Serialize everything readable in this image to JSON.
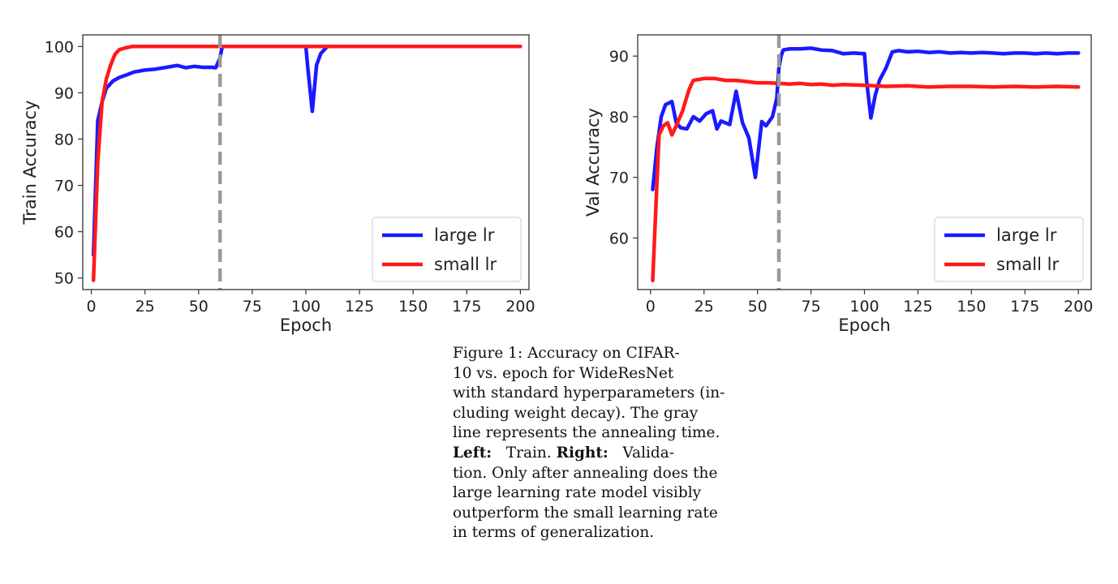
{
  "chart_data": [
    {
      "type": "line",
      "title": "",
      "xlabel": "Epoch",
      "ylabel": "Train Accuracy",
      "xlim": [
        -4,
        204
      ],
      "ylim": [
        47.5,
        102.5
      ],
      "xticks": [
        0,
        25,
        50,
        75,
        100,
        125,
        150,
        175,
        200
      ],
      "yticks": [
        50,
        60,
        70,
        80,
        90,
        100
      ],
      "grid": false,
      "legend": "bottom-right",
      "vline": {
        "x": 60,
        "color": "#999999",
        "style": "dashed"
      },
      "series": [
        {
          "name": "large lr",
          "color": "#1a1aff",
          "points": [
            [
              1,
              55
            ],
            [
              3,
              84
            ],
            [
              5,
              88
            ],
            [
              7,
              91
            ],
            [
              10,
              92.5
            ],
            [
              13,
              93.3
            ],
            [
              16,
              93.8
            ],
            [
              20,
              94.5
            ],
            [
              25,
              94.9
            ],
            [
              30,
              95.1
            ],
            [
              35,
              95.5
            ],
            [
              40,
              95.9
            ],
            [
              44,
              95.4
            ],
            [
              48,
              95.7
            ],
            [
              52,
              95.5
            ],
            [
              56,
              95.5
            ],
            [
              58,
              95.4
            ],
            [
              60,
              97.5
            ],
            [
              61,
              100
            ],
            [
              100,
              100
            ],
            [
              101,
              95
            ],
            [
              103,
              86
            ],
            [
              105,
              96
            ],
            [
              107,
              98.5
            ],
            [
              110,
              100
            ],
            [
              200,
              100
            ]
          ]
        },
        {
          "name": "small lr",
          "color": "#ff1a1a",
          "points": [
            [
              1,
              49.5
            ],
            [
              3,
              75
            ],
            [
              5,
              88
            ],
            [
              7,
              93
            ],
            [
              9,
              96
            ],
            [
              11,
              98.3
            ],
            [
              13,
              99.3
            ],
            [
              16,
              99.7
            ],
            [
              19,
              100
            ],
            [
              200,
              100
            ]
          ]
        }
      ]
    },
    {
      "type": "line",
      "title": "",
      "xlabel": "Epoch",
      "ylabel": "Val Accuracy",
      "xlim": [
        -6,
        206
      ],
      "ylim": [
        51.5,
        93.5
      ],
      "xticks": [
        0,
        25,
        50,
        75,
        100,
        125,
        150,
        175,
        200
      ],
      "yticks": [
        60,
        70,
        80,
        90
      ],
      "grid": false,
      "legend": "bottom-right",
      "vline": {
        "x": 60,
        "color": "#999999",
        "style": "dashed"
      },
      "series": [
        {
          "name": "large lr",
          "color": "#1a1aff",
          "points": [
            [
              1,
              68
            ],
            [
              3,
              75
            ],
            [
              5,
              80
            ],
            [
              7,
              82
            ],
            [
              10,
              82.5
            ],
            [
              12,
              79
            ],
            [
              14,
              78.2
            ],
            [
              17,
              78
            ],
            [
              20,
              80
            ],
            [
              23,
              79.3
            ],
            [
              26,
              80.5
            ],
            [
              29,
              81
            ],
            [
              31,
              78
            ],
            [
              33,
              79.3
            ],
            [
              35,
              79
            ],
            [
              37,
              78.7
            ],
            [
              40,
              84.2
            ],
            [
              43,
              79
            ],
            [
              46,
              76.5
            ],
            [
              49,
              70
            ],
            [
              52,
              79.2
            ],
            [
              54,
              78.5
            ],
            [
              57,
              80
            ],
            [
              59,
              83
            ],
            [
              60,
              88
            ],
            [
              61,
              90
            ],
            [
              62,
              91
            ],
            [
              65,
              91.2
            ],
            [
              70,
              91.2
            ],
            [
              75,
              91.3
            ],
            [
              80,
              91
            ],
            [
              85,
              90.9
            ],
            [
              90,
              90.4
            ],
            [
              95,
              90.5
            ],
            [
              100,
              90.4
            ],
            [
              101,
              86
            ],
            [
              103,
              79.8
            ],
            [
              105,
              83.5
            ],
            [
              107,
              86
            ],
            [
              110,
              88
            ],
            [
              113,
              90.7
            ],
            [
              116,
              90.9
            ],
            [
              120,
              90.7
            ],
            [
              125,
              90.8
            ],
            [
              130,
              90.6
            ],
            [
              135,
              90.7
            ],
            [
              140,
              90.5
            ],
            [
              145,
              90.6
            ],
            [
              150,
              90.5
            ],
            [
              155,
              90.6
            ],
            [
              160,
              90.5
            ],
            [
              165,
              90.4
            ],
            [
              170,
              90.5
            ],
            [
              175,
              90.5
            ],
            [
              180,
              90.4
            ],
            [
              185,
              90.5
            ],
            [
              190,
              90.4
            ],
            [
              195,
              90.5
            ],
            [
              200,
              90.5
            ]
          ]
        },
        {
          "name": "small lr",
          "color": "#ff1a1a",
          "points": [
            [
              1,
              53
            ],
            [
              3,
              69
            ],
            [
              4,
              77
            ],
            [
              6,
              78.5
            ],
            [
              8,
              79
            ],
            [
              10,
              77
            ],
            [
              12,
              78.5
            ],
            [
              15,
              81
            ],
            [
              18,
              84.5
            ],
            [
              20,
              86
            ],
            [
              25,
              86.3
            ],
            [
              30,
              86.3
            ],
            [
              35,
              86
            ],
            [
              40,
              86
            ],
            [
              45,
              85.8
            ],
            [
              50,
              85.6
            ],
            [
              55,
              85.6
            ],
            [
              60,
              85.5
            ],
            [
              65,
              85.4
            ],
            [
              70,
              85.5
            ],
            [
              75,
              85.3
            ],
            [
              80,
              85.4
            ],
            [
              85,
              85.2
            ],
            [
              90,
              85.3
            ],
            [
              100,
              85.2
            ],
            [
              105,
              85.1
            ],
            [
              110,
              85
            ],
            [
              120,
              85.1
            ],
            [
              130,
              84.9
            ],
            [
              140,
              85
            ],
            [
              150,
              85
            ],
            [
              160,
              84.9
            ],
            [
              170,
              85
            ],
            [
              180,
              84.9
            ],
            [
              190,
              85
            ],
            [
              200,
              84.9
            ]
          ]
        }
      ]
    }
  ],
  "caption": {
    "line1": "Figure 1:  Accuracy on CIFAR-",
    "line2": "10 vs.   epoch for WideResNet",
    "line3": "with standard hyperparameters (in-",
    "line4": "cluding weight decay).  The gray",
    "line5": "line represents the annealing time.",
    "line6_bold_left": "Left:",
    "line6_text_a": "   Train. ",
    "line6_bold_right": "Right:",
    "line6_text_b": "   Valida-",
    "line7": "tion. Only after annealing does the",
    "line8": "large learning rate model visibly",
    "line9": "outperform the small learning rate",
    "line10": "in terms of generalization."
  }
}
